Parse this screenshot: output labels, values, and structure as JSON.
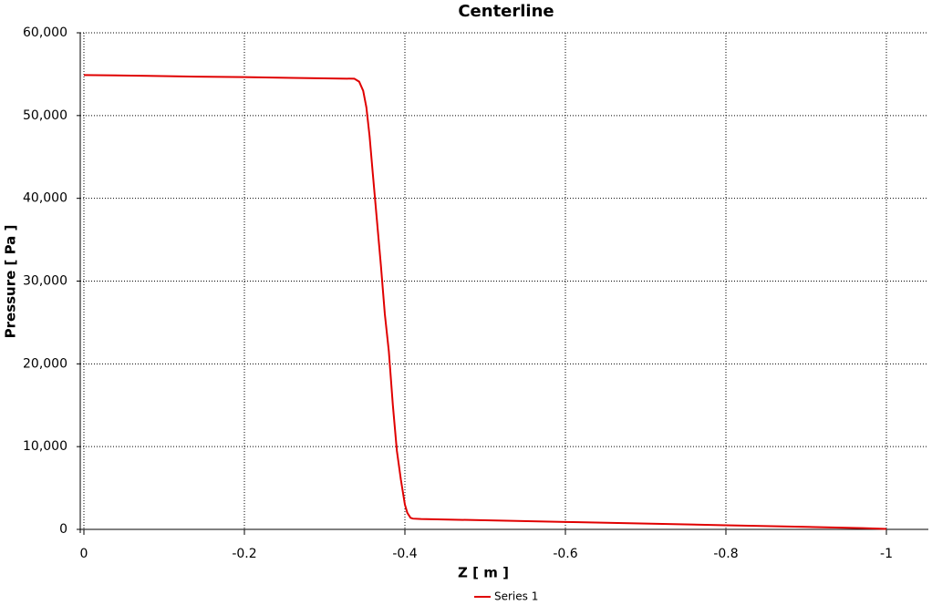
{
  "chart_data": {
    "type": "line",
    "title": "Centerline",
    "x_label": "Z [ m ]",
    "y_label": "Pressure [ Pa ]",
    "xlim": [
      0,
      -1
    ],
    "xticks": [
      0,
      -0.2,
      -0.4,
      -0.6,
      -0.8,
      -1
    ],
    "ylim": [
      0,
      60000
    ],
    "yticks": [
      0,
      {
        "value": 10000,
        "label": "10,000"
      },
      {
        "value": 20000,
        "label": "20,000"
      },
      {
        "value": 30000,
        "label": "30,000"
      },
      {
        "value": 40000,
        "label": "40,000"
      },
      {
        "value": 50000,
        "label": "50,000"
      },
      {
        "value": 60000,
        "label": "60,000"
      }
    ],
    "grid": true,
    "legend": "bottom",
    "x": [
      0,
      -0.08,
      -0.14,
      -0.2,
      -0.26,
      -0.337,
      -0.343,
      -0.348,
      -0.352,
      -0.356,
      -0.36,
      -0.365,
      -0.37,
      -0.375,
      -0.38,
      -0.385,
      -0.39,
      -0.395,
      -0.4,
      -0.403,
      -0.407,
      -0.41,
      -0.42,
      -0.5,
      -0.6,
      -0.7,
      -0.8,
      -0.9,
      -0.97,
      -1
    ],
    "series": [
      {
        "name": "Series 1",
        "color": "#e00000",
        "values": [
          54900,
          54800,
          54700,
          54650,
          54550,
          54450,
          54100,
          53000,
          51000,
          47500,
          43000,
          37500,
          32000,
          26000,
          21500,
          15000,
          9500,
          6000,
          3000,
          2000,
          1400,
          1300,
          1250,
          1100,
          900,
          700,
          500,
          300,
          150,
          50
        ]
      }
    ]
  }
}
